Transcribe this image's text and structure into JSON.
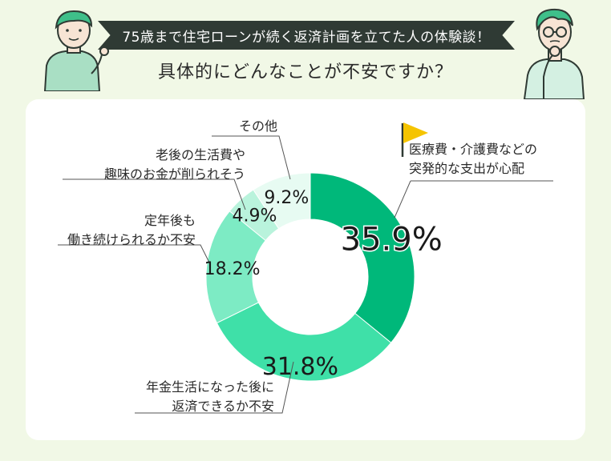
{
  "header": {
    "banner_text": "75歳まで住宅ローンが続く返済計画を立てた人の体験談！",
    "subtitle": "具体的にどんなことが不安ですか？"
  },
  "colors": {
    "background": "#f1f8e6",
    "banner": "#2f3a34",
    "card": "#ffffff",
    "flag": "#f5c400",
    "leader_line": "#555555"
  },
  "chart_data": {
    "type": "donut",
    "start": "12 o'clock",
    "direction": "clockwise",
    "slices": [
      {
        "label_lines": [
          "医療費・介護費などの",
          "突発的な支出が心配"
        ],
        "value": 35.9,
        "value_text": "35.9%",
        "color": "#00b87a",
        "highlight": true
      },
      {
        "label_lines": [
          "年金生活になった後に",
          "返済できるか不安"
        ],
        "value": 31.8,
        "value_text": "31.8%",
        "color": "#3fe0a8"
      },
      {
        "label_lines": [
          "定年後も",
          "働き続けられるか不安"
        ],
        "value": 18.2,
        "value_text": "18.2%",
        "color": "#7debc4"
      },
      {
        "label_lines": [
          "老後の生活費や",
          "趣味のお金が削られそう"
        ],
        "value": 4.9,
        "value_text": "4.9%",
        "color": "#b9f3dc"
      },
      {
        "label_lines": [
          "その他"
        ],
        "value": 9.2,
        "value_text": "9.2%",
        "color": "#e7fbf2"
      }
    ]
  }
}
